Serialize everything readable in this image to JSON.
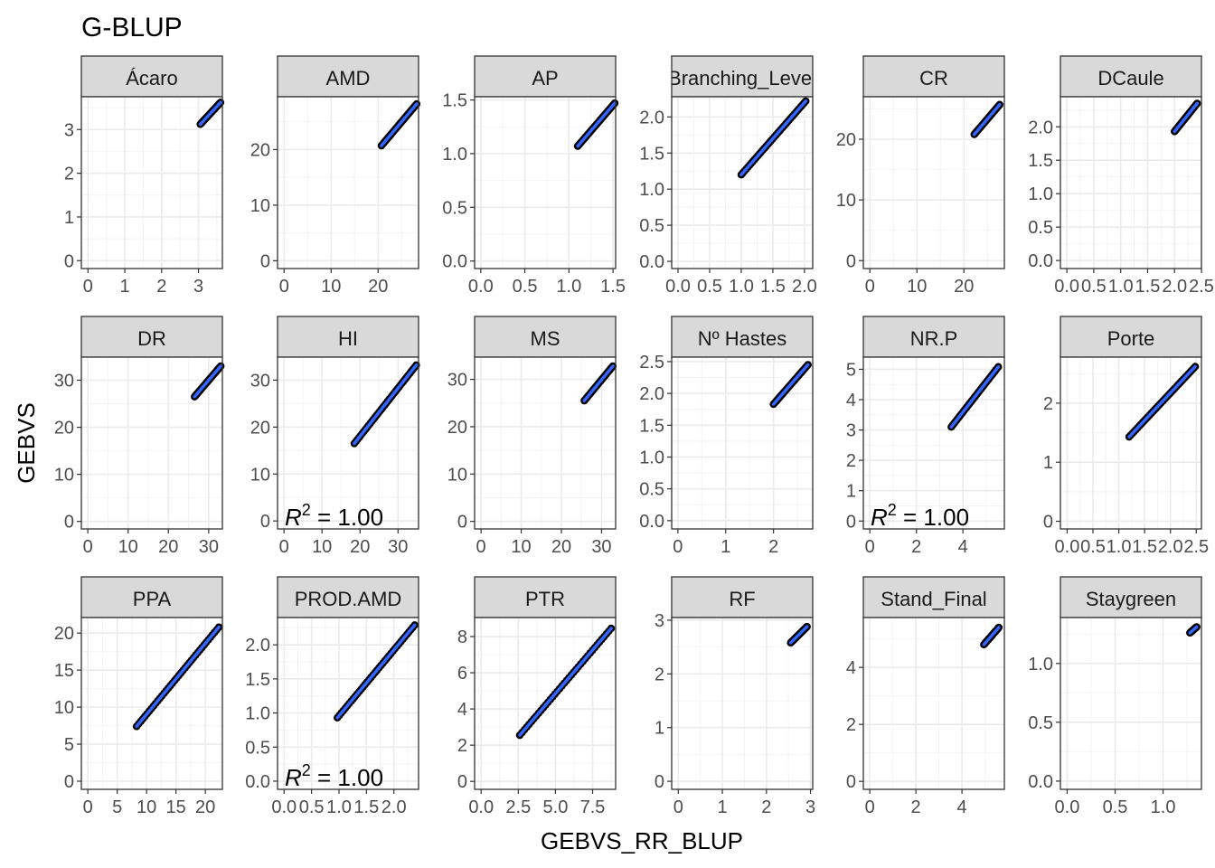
{
  "chart_data": {
    "type": "scatter",
    "title": "G-BLUP",
    "xlabel": "GEBVS_RR_BLUP",
    "ylabel": "GEBVS",
    "grid": true,
    "colors": {
      "points": "#000000",
      "line": "#3366ff",
      "strip": "#d9d9d9",
      "grid": "#ebebeb",
      "panel_border": "#333333"
    },
    "panels": [
      {
        "title": "Ácaro",
        "xlim": [
          -0.18,
          3.65
        ],
        "ylim": [
          -0.18,
          3.75
        ],
        "xticks": [
          0,
          1,
          2,
          3
        ],
        "xtick_labels": [
          "0",
          "1",
          "2",
          "3"
        ],
        "yticks": [
          0,
          1,
          2,
          3
        ],
        "ytick_labels": [
          "0",
          "1",
          "2",
          "3"
        ],
        "x_range": [
          3.05,
          3.6
        ],
        "y_range": [
          3.12,
          3.62
        ],
        "r2": ""
      },
      {
        "title": "AMD",
        "xlim": [
          -1.4,
          28.6
        ],
        "ylim": [
          -1.4,
          29.5
        ],
        "xticks": [
          0,
          10,
          20
        ],
        "xtick_labels": [
          "0",
          "10",
          "20"
        ],
        "yticks": [
          0,
          10,
          20
        ],
        "ytick_labels": [
          "0",
          "10",
          "20"
        ],
        "x_range": [
          20.7,
          28.2
        ],
        "y_range": [
          20.7,
          28.2
        ],
        "r2": ""
      },
      {
        "title": "AP",
        "xlim": [
          -0.07,
          1.53
        ],
        "ylim": [
          -0.07,
          1.53
        ],
        "xticks": [
          0,
          0.5,
          1.0,
          1.5
        ],
        "xtick_labels": [
          "0.0",
          "0.5",
          "1.0",
          "1.5"
        ],
        "yticks": [
          0,
          0.5,
          1.0,
          1.5
        ],
        "ytick_labels": [
          "0.0",
          "0.5",
          "1.0",
          "1.5"
        ],
        "x_range": [
          1.1,
          1.52
        ],
        "y_range": [
          1.07,
          1.47
        ],
        "r2": ""
      },
      {
        "title": "Branching_Level",
        "xlim": [
          -0.1,
          2.13
        ],
        "ylim": [
          -0.1,
          2.28
        ],
        "xticks": [
          0,
          0.5,
          1.0,
          1.5,
          2.0
        ],
        "xtick_labels": [
          "0.0",
          "0.5",
          "1.0",
          "1.5",
          "2.0"
        ],
        "yticks": [
          0,
          0.5,
          1.0,
          1.5,
          2.0
        ],
        "ytick_labels": [
          "0.0",
          "0.5",
          "1.0",
          "1.5",
          "2.0"
        ],
        "x_range": [
          1.0,
          2.02
        ],
        "y_range": [
          1.2,
          2.22
        ],
        "r2": ""
      },
      {
        "title": "CR",
        "xlim": [
          -1.4,
          28.6
        ],
        "ylim": [
          -1.3,
          27.0
        ],
        "xticks": [
          0,
          10,
          20
        ],
        "xtick_labels": [
          "0",
          "10",
          "20"
        ],
        "yticks": [
          0,
          10,
          20
        ],
        "ytick_labels": [
          "0",
          "10",
          "20"
        ],
        "x_range": [
          22.2,
          27.6
        ],
        "y_range": [
          20.8,
          25.7
        ],
        "r2": ""
      },
      {
        "title": "DCaule",
        "xlim": [
          -0.12,
          2.5
        ],
        "ylim": [
          -0.12,
          2.45
        ],
        "xticks": [
          0,
          0.5,
          1.0,
          1.5,
          2.0,
          2.5
        ],
        "xtick_labels": [
          "0.0",
          "0.5",
          "1.0",
          "1.5",
          "2.0",
          "2.5"
        ],
        "yticks": [
          0,
          0.5,
          1.0,
          1.5,
          2.0
        ],
        "ytick_labels": [
          "0.0",
          "0.5",
          "1.0",
          "1.5",
          "2.0"
        ],
        "x_range": [
          2.0,
          2.42
        ],
        "y_range": [
          1.93,
          2.35
        ],
        "r2": ""
      },
      {
        "title": "DR",
        "xlim": [
          -1.6,
          33.4
        ],
        "ylim": [
          -1.6,
          34.9
        ],
        "xticks": [
          0,
          10,
          20,
          30
        ],
        "xtick_labels": [
          "0",
          "10",
          "20",
          "30"
        ],
        "yticks": [
          0,
          10,
          20,
          30
        ],
        "ytick_labels": [
          "0",
          "10",
          "20",
          "30"
        ],
        "x_range": [
          26.5,
          33.0
        ],
        "y_range": [
          26.5,
          33.0
        ],
        "r2": ""
      },
      {
        "title": "HI",
        "xlim": [
          -1.7,
          35.4
        ],
        "ylim": [
          -1.7,
          34.9
        ],
        "xticks": [
          0,
          10,
          20,
          30
        ],
        "xtick_labels": [
          "0",
          "10",
          "20",
          "30"
        ],
        "yticks": [
          0,
          10,
          20,
          30
        ],
        "ytick_labels": [
          "0",
          "10",
          "20",
          "30"
        ],
        "x_range": [
          18.5,
          34.8
        ],
        "y_range": [
          16.5,
          33.2
        ],
        "r2": "= 1.00"
      },
      {
        "title": "MS",
        "xlim": [
          -1.6,
          33.5
        ],
        "ylim": [
          -1.6,
          34.7
        ],
        "xticks": [
          0,
          10,
          20,
          30
        ],
        "xtick_labels": [
          "0",
          "10",
          "20",
          "30"
        ],
        "yticks": [
          0,
          10,
          20,
          30
        ],
        "ytick_labels": [
          "0",
          "10",
          "20",
          "30"
        ],
        "x_range": [
          25.7,
          32.8
        ],
        "y_range": [
          25.5,
          32.8
        ],
        "r2": ""
      },
      {
        "title": "Nº Hastes",
        "xlim": [
          -0.13,
          2.82
        ],
        "ylim": [
          -0.13,
          2.57
        ],
        "xticks": [
          0,
          1,
          2
        ],
        "xtick_labels": [
          "0",
          "1",
          "2"
        ],
        "yticks": [
          0,
          0.5,
          1.0,
          1.5,
          2.0,
          2.5
        ],
        "ytick_labels": [
          "0.0",
          "0.5",
          "1.0",
          "1.5",
          "2.0",
          "2.5"
        ],
        "x_range": [
          2.0,
          2.72
        ],
        "y_range": [
          1.83,
          2.45
        ],
        "r2": ""
      },
      {
        "title": "NR.P",
        "xlim": [
          -0.28,
          5.78
        ],
        "ylim": [
          -0.26,
          5.4
        ],
        "xticks": [
          0,
          2,
          4
        ],
        "xtick_labels": [
          "0",
          "2",
          "4"
        ],
        "yticks": [
          0,
          1,
          2,
          3,
          4,
          5
        ],
        "ytick_labels": [
          "0",
          "1",
          "2",
          "3",
          "4",
          "5"
        ],
        "x_range": [
          3.5,
          5.52
        ],
        "y_range": [
          3.1,
          5.08
        ],
        "r2": "= 1.00"
      },
      {
        "title": "Porte",
        "xlim": [
          -0.13,
          2.6
        ],
        "ylim": [
          -0.13,
          2.78
        ],
        "xticks": [
          0,
          0.5,
          1.0,
          1.5,
          2.0,
          2.5
        ],
        "xtick_labels": [
          "0.0",
          "0.5",
          "1.0",
          "1.5",
          "2.0",
          "2.5"
        ],
        "yticks": [
          0,
          1,
          2
        ],
        "ytick_labels": [
          "0",
          "1",
          "2"
        ],
        "x_range": [
          1.2,
          2.48
        ],
        "y_range": [
          1.43,
          2.62
        ],
        "r2": ""
      },
      {
        "title": "PPA",
        "xlim": [
          -1.1,
          22.9
        ],
        "ylim": [
          -1.1,
          22.1
        ],
        "xticks": [
          0,
          5,
          10,
          15,
          20
        ],
        "xtick_labels": [
          "0",
          "5",
          "10",
          "15",
          "20"
        ],
        "yticks": [
          0,
          5,
          10,
          15,
          20
        ],
        "ytick_labels": [
          "0",
          "5",
          "10",
          "15",
          "20"
        ],
        "x_range": [
          8.3,
          22.3
        ],
        "y_range": [
          7.4,
          20.8
        ],
        "r2": ""
      },
      {
        "title": "PROD.AMD",
        "xlim": [
          -0.12,
          2.45
        ],
        "ylim": [
          -0.12,
          2.4
        ],
        "xticks": [
          0,
          0.5,
          1.0,
          1.5,
          2.0
        ],
        "xtick_labels": [
          "0.0",
          "0.5",
          "1.0",
          "1.5",
          "2.0"
        ],
        "yticks": [
          0,
          0.5,
          1.0,
          1.5,
          2.0
        ],
        "ytick_labels": [
          "0.0",
          "0.5",
          "1.0",
          "1.5",
          "2.0"
        ],
        "x_range": [
          0.97,
          2.38
        ],
        "y_range": [
          0.93,
          2.29
        ],
        "r2": "= 1.00"
      },
      {
        "title": "PTR",
        "xlim": [
          -0.44,
          9.05
        ],
        "ylim": [
          -0.44,
          9.05
        ],
        "xticks": [
          0,
          2.5,
          5.0,
          7.5
        ],
        "xtick_labels": [
          "0.0",
          "2.5",
          "5.0",
          "7.5"
        ],
        "yticks": [
          0,
          2,
          4,
          6,
          8
        ],
        "ytick_labels": [
          "0",
          "2",
          "4",
          "6",
          "8"
        ],
        "x_range": [
          2.6,
          8.75
        ],
        "y_range": [
          2.55,
          8.45
        ],
        "r2": ""
      },
      {
        "title": "RF",
        "xlim": [
          -0.15,
          3.05
        ],
        "ylim": [
          -0.15,
          3.05
        ],
        "xticks": [
          0,
          1,
          2,
          3
        ],
        "xtick_labels": [
          "0",
          "1",
          "2",
          "3"
        ],
        "yticks": [
          0,
          1,
          2,
          3
        ],
        "ytick_labels": [
          "0",
          "1",
          "2",
          "3"
        ],
        "x_range": [
          2.55,
          2.92
        ],
        "y_range": [
          2.58,
          2.88
        ],
        "r2": ""
      },
      {
        "title": "Stand_Final",
        "xlim": [
          -0.28,
          5.84
        ],
        "ylim": [
          -0.28,
          5.75
        ],
        "xticks": [
          0,
          2,
          4
        ],
        "xtick_labels": [
          "0",
          "2",
          "4"
        ],
        "yticks": [
          0,
          2,
          4
        ],
        "ytick_labels": [
          "0",
          "2",
          "4"
        ],
        "x_range": [
          4.95,
          5.6
        ],
        "y_range": [
          4.8,
          5.4
        ],
        "r2": ""
      },
      {
        "title": "Staygreen",
        "xlim": [
          -0.07,
          1.4
        ],
        "ylim": [
          -0.07,
          1.39
        ],
        "xticks": [
          0,
          0.5,
          1.0
        ],
        "xtick_labels": [
          "0.0",
          "0.5",
          "1.0"
        ],
        "yticks": [
          0,
          0.5,
          1.0
        ],
        "ytick_labels": [
          "0.0",
          "0.5",
          "1.0"
        ],
        "x_range": [
          1.28,
          1.35
        ],
        "y_range": [
          1.26,
          1.31
        ],
        "r2": ""
      }
    ]
  }
}
